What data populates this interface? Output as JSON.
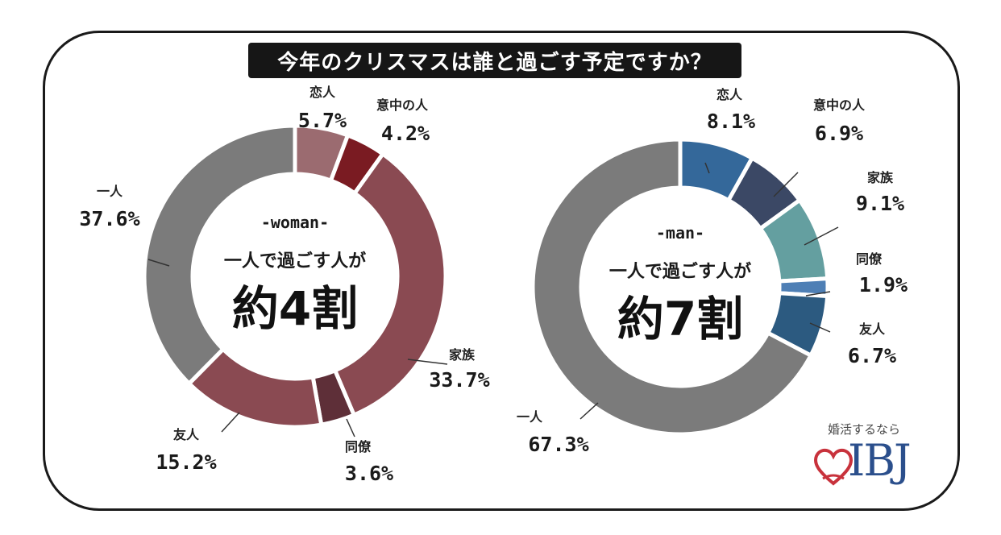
{
  "title": "今年のクリスマスは誰と過ごす予定ですか？",
  "brand": {
    "tagline": "婚活するなら",
    "name": "IBJ",
    "heart_color": "#c8323c",
    "text_color": "#2b4f8c"
  },
  "chart_data": [
    {
      "type": "pie",
      "donut": true,
      "center_label": "-woman-",
      "center_text": "一人で過ごす人が",
      "center_highlight": "約4割",
      "categories": [
        "恋人",
        "意中の人",
        "家族",
        "同僚",
        "友人",
        "一人"
      ],
      "values": [
        5.7,
        4.2,
        33.7,
        3.6,
        15.2,
        37.6
      ],
      "value_labels": [
        "5.7%",
        "4.2%",
        "33.7%",
        "3.6%",
        "15.2%",
        "37.6%"
      ],
      "colors": [
        "#9b6b70",
        "#7a1b22",
        "#8a4a52",
        "#5e2f38",
        "#8a4a52",
        "#7b7b7b"
      ]
    },
    {
      "type": "pie",
      "donut": true,
      "center_label": "-man-",
      "center_text": "一人で過ごす人が",
      "center_highlight": "約7割",
      "categories": [
        "恋人",
        "意中の人",
        "家族",
        "同僚",
        "友人",
        "一人"
      ],
      "values": [
        8.1,
        6.9,
        9.1,
        1.9,
        6.7,
        67.3
      ],
      "value_labels": [
        "8.1%",
        "6.9%",
        "9.1%",
        "1.9%",
        "6.7%",
        "67.3%"
      ],
      "colors": [
        "#34689a",
        "#3b4865",
        "#649fa0",
        "#4e7fb5",
        "#2c5a80",
        "#7b7b7b"
      ]
    }
  ]
}
